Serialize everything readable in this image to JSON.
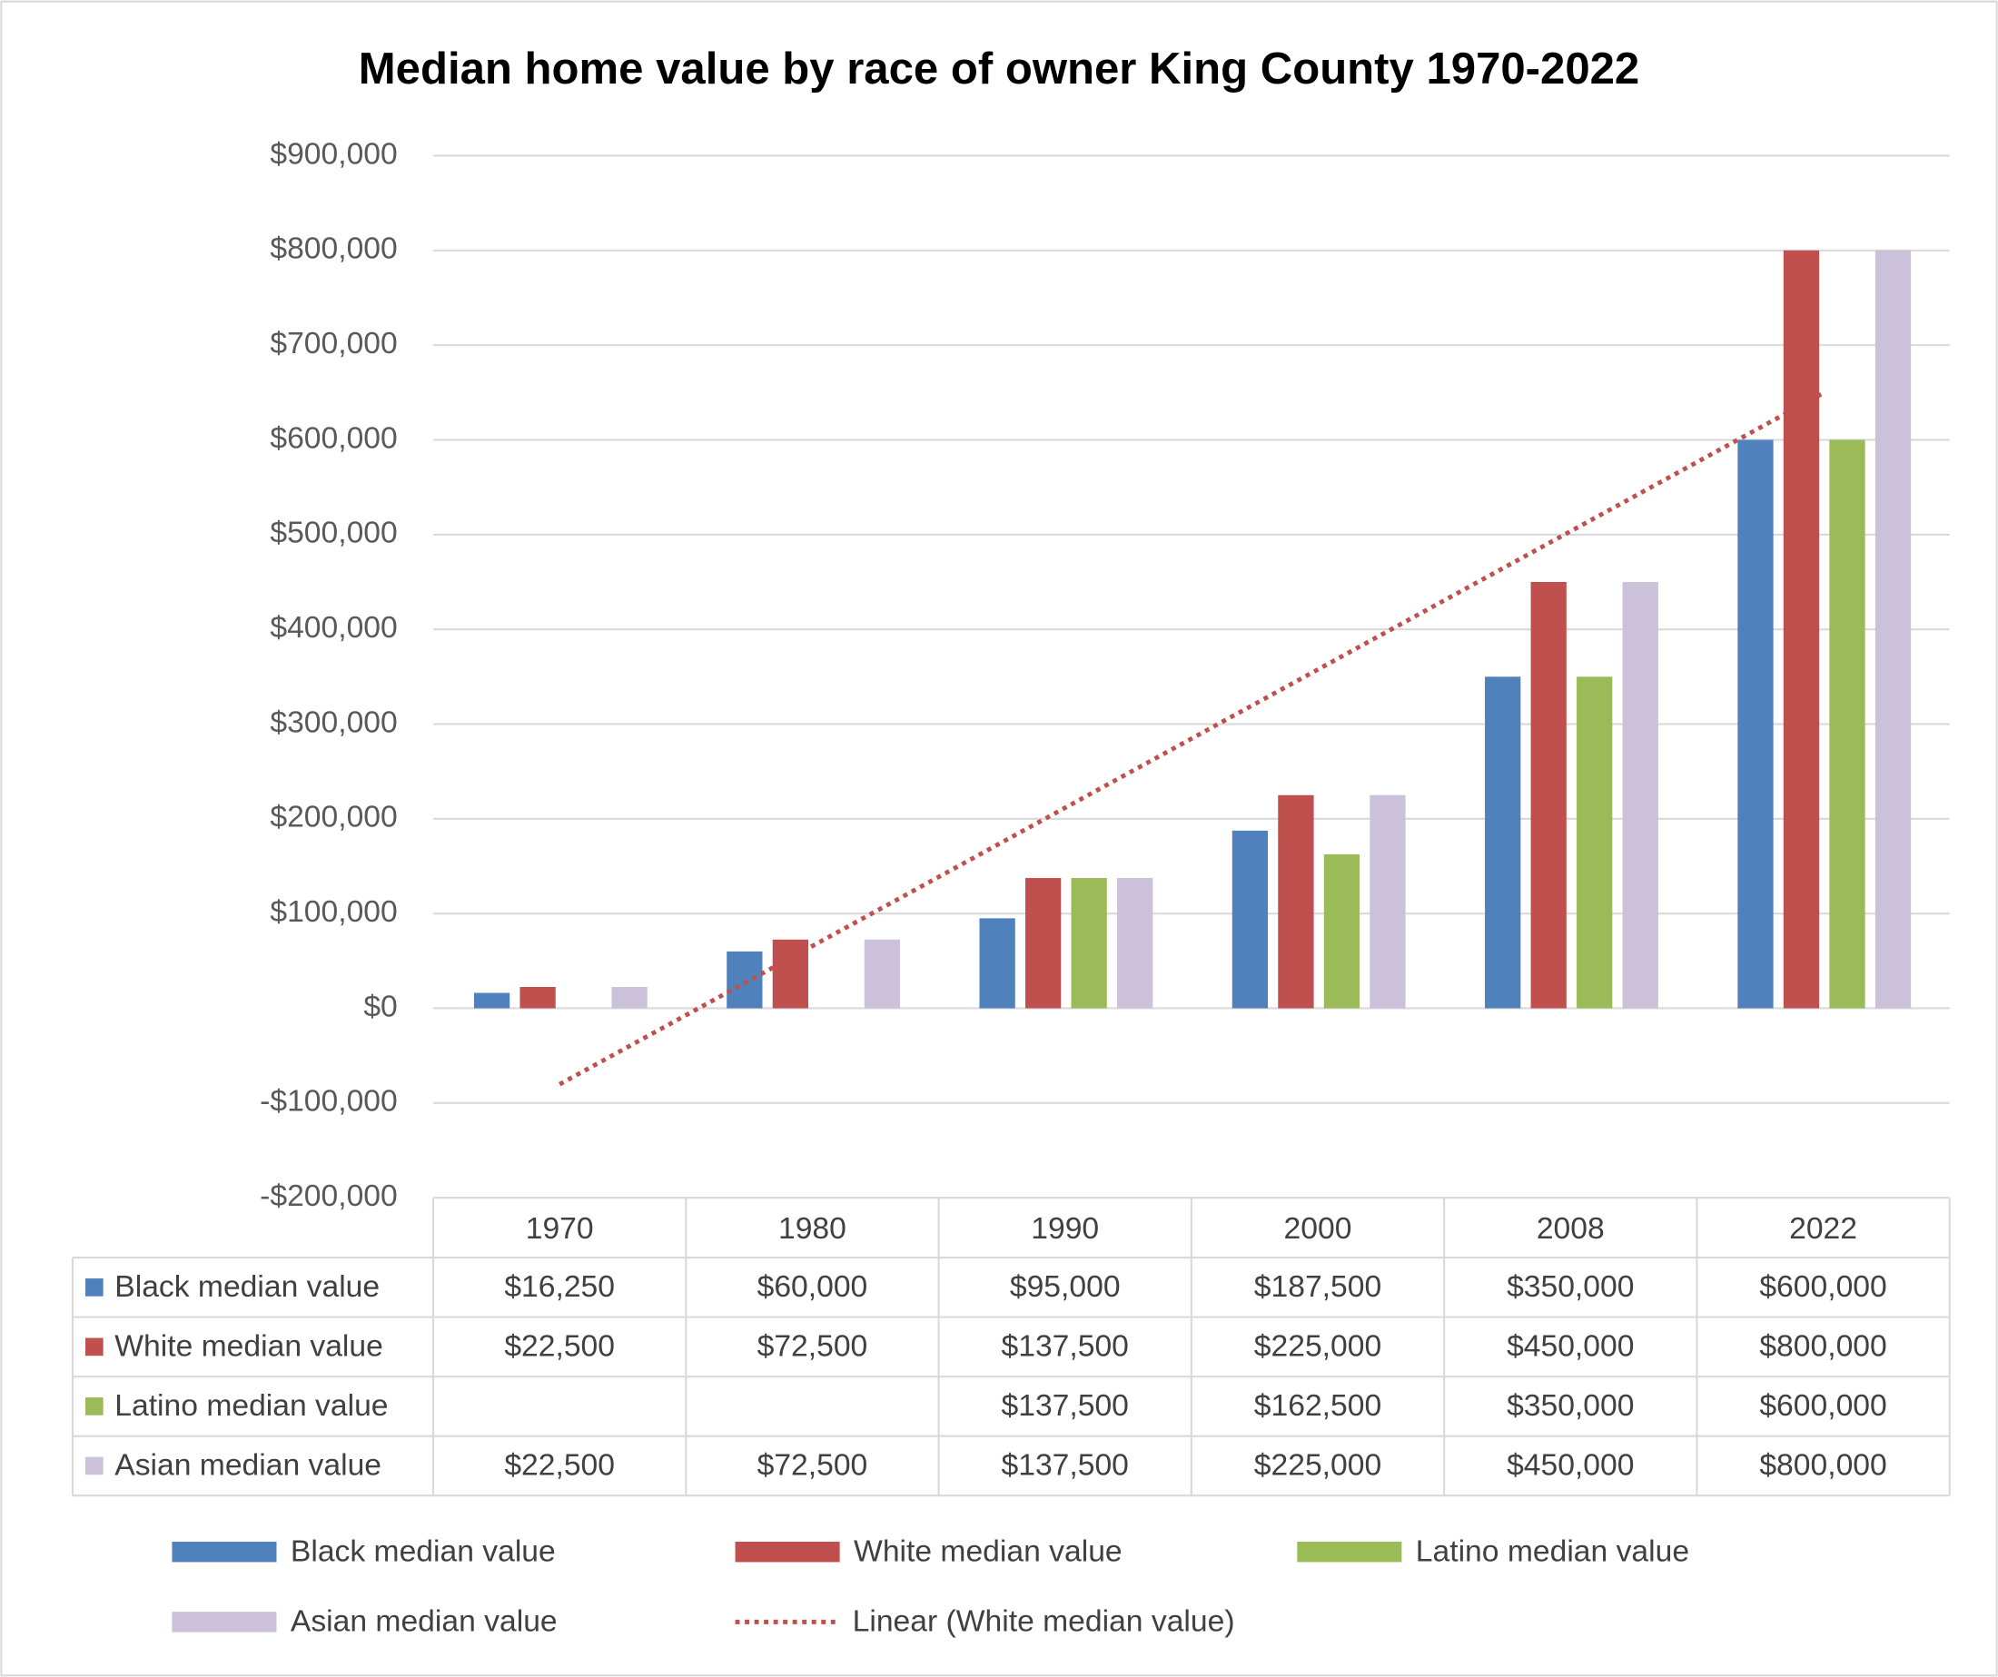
{
  "chart_data": {
    "type": "bar",
    "title": "Median home value by race of owner King County 1970-2022",
    "categories": [
      "1970",
      "1980",
      "1990",
      "2000",
      "2008",
      "2022"
    ],
    "series": [
      {
        "name": "Black median value",
        "color": "#4f81bd",
        "values": [
          16250,
          60000,
          95000,
          187500,
          350000,
          600000
        ],
        "value_labels": [
          "$16,250",
          "$60,000",
          "$95,000",
          "$187,500",
          "$350,000",
          "$600,000"
        ]
      },
      {
        "name": "White median value",
        "color": "#c0504d",
        "values": [
          22500,
          72500,
          137500,
          225000,
          450000,
          800000
        ],
        "value_labels": [
          "$22,500",
          "$72,500",
          "$137,500",
          "$225,000",
          "$450,000",
          "$800,000"
        ]
      },
      {
        "name": "Latino median value",
        "color": "#9bbb59",
        "values": [
          null,
          null,
          137500,
          162500,
          350000,
          600000
        ],
        "value_labels": [
          null,
          null,
          "$137,500",
          "$162,500",
          "$350,000",
          "$600,000"
        ]
      },
      {
        "name": "Asian median value",
        "color": "#ccc1da",
        "values": [
          22500,
          72500,
          137500,
          225000,
          450000,
          800000
        ],
        "value_labels": [
          "$22,500",
          "$72,500",
          "$137,500",
          "$225,000",
          "$450,000",
          "$800,000"
        ]
      }
    ],
    "trendline": {
      "name": "Linear (White median value)",
      "color": "#c0504d",
      "values": [
        -80238,
        649405
      ]
    },
    "ylim": [
      -200000,
      900000
    ],
    "yticks": [
      {
        "value": -200000,
        "label": "-$200,000"
      },
      {
        "value": -100000,
        "label": "-$100,000"
      },
      {
        "value": 0,
        "label": "$0"
      },
      {
        "value": 100000,
        "label": "$100,000"
      },
      {
        "value": 200000,
        "label": "$200,000"
      },
      {
        "value": 300000,
        "label": "$300,000"
      },
      {
        "value": 400000,
        "label": "$400,000"
      },
      {
        "value": 500000,
        "label": "$500,000"
      },
      {
        "value": 600000,
        "label": "$600,000"
      },
      {
        "value": 700000,
        "label": "$700,000"
      },
      {
        "value": 800000,
        "label": "$800,000"
      },
      {
        "value": 900000,
        "label": "$900,000"
      }
    ],
    "grid": true
  }
}
